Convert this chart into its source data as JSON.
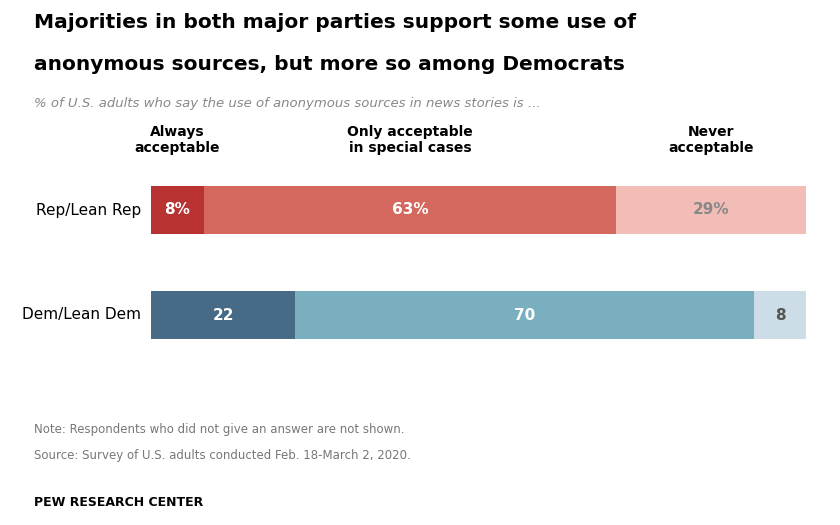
{
  "title_line1": "Majorities in both major parties support some use of",
  "title_line2": "anonymous sources, but more so among Democrats",
  "subtitle": "% of U.S. adults who say the use of anonymous sources in news stories is ...",
  "categories": [
    "Rep/Lean Rep",
    "Dem/Lean Dem"
  ],
  "col_labels": [
    "Always\nacceptable",
    "Only acceptable\nin special cases",
    "Never\nacceptable"
  ],
  "values": [
    [
      8,
      63,
      29
    ],
    [
      22,
      70,
      8
    ]
  ],
  "bar_colors_rep": [
    "#b83232",
    "#d4685e",
    "#f2bdb6"
  ],
  "bar_colors_dem": [
    "#476b87",
    "#7aafc0",
    "#ccdde8"
  ],
  "label_colors_rep": [
    "white",
    "white",
    "#888888"
  ],
  "label_colors_dem": [
    "white",
    "white",
    "#555555"
  ],
  "label_suffixes_rep": [
    "%",
    "%",
    "%"
  ],
  "label_suffixes_dem": [
    "",
    "",
    ""
  ],
  "note_line1": "Note: Respondents who did not give an answer are not shown.",
  "note_line2": "Source: Survey of U.S. adults conducted Feb. 18-March 2, 2020.",
  "footer": "PEW RESEARCH CENTER",
  "background_color": "#ffffff"
}
